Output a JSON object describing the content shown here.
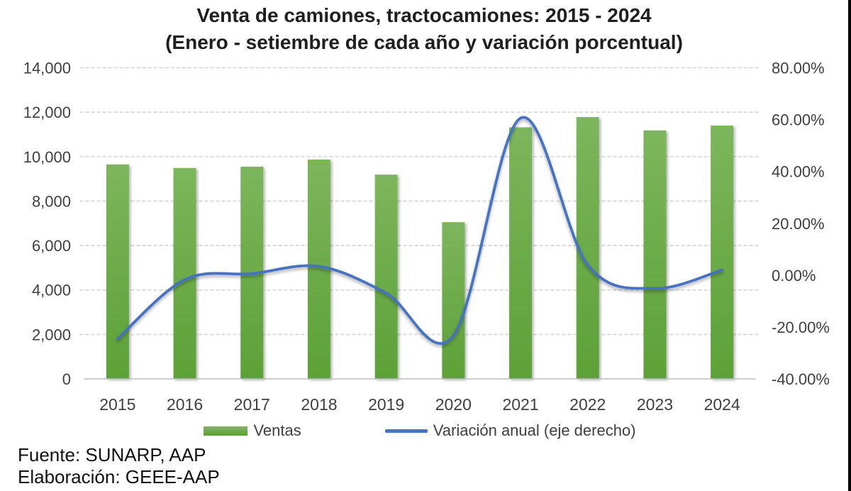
{
  "legend": {
    "ventas_label": "Ventas",
    "variacion_label": "Variación anual (eje derecho)"
  },
  "footer": {
    "line1": "Fuente: SUNARP, AAP",
    "line2": "Elaboración: GEEE-AAP"
  },
  "colors": {
    "bar_top": "#7cb65c",
    "bar_bottom": "#5ca136",
    "line": "#4472c4",
    "grid": "#d6d6d6",
    "axis_line": "#bfbfbf",
    "tick_text": "#3f3f3f",
    "title_text": "#1f1f1f",
    "border": "#000000"
  },
  "chart_data": {
    "type": "bar",
    "combo": "bar+line",
    "title": "Venta de camiones, tractocamiones: 2015 - 2024",
    "subtitle": "(Enero - setiembre de cada año y variación porcentual)",
    "categories": [
      "2015",
      "2016",
      "2017",
      "2018",
      "2019",
      "2020",
      "2021",
      "2022",
      "2023",
      "2024"
    ],
    "series": [
      {
        "name": "Ventas",
        "type": "bar",
        "axis": "left",
        "values": [
          9650,
          9490,
          9550,
          9870,
          9190,
          7050,
          11320,
          11780,
          11180,
          11400
        ]
      },
      {
        "name": "Variación anual (eje derecho)",
        "type": "line",
        "axis": "right",
        "unit": "%",
        "values": [
          -24.5,
          -1.7,
          0.6,
          3.4,
          -6.9,
          -23.3,
          60.6,
          4.0,
          -5.1,
          2.0
        ]
      }
    ],
    "left_axis": {
      "min": 0,
      "max": 14000,
      "step": 2000,
      "tick_labels": [
        "14,000",
        "12,000",
        "10,000",
        "8,000",
        "6,000",
        "4,000",
        "2,000",
        "0"
      ]
    },
    "right_axis": {
      "min": -40,
      "max": 80,
      "step": 20,
      "tick_labels": [
        "80.00%",
        "60.00%",
        "40.00%",
        "20.00%",
        "0.00%",
        "-20.00%",
        "-40.00%"
      ]
    },
    "grid": "dashed-horizontal",
    "legend_position": "bottom"
  }
}
